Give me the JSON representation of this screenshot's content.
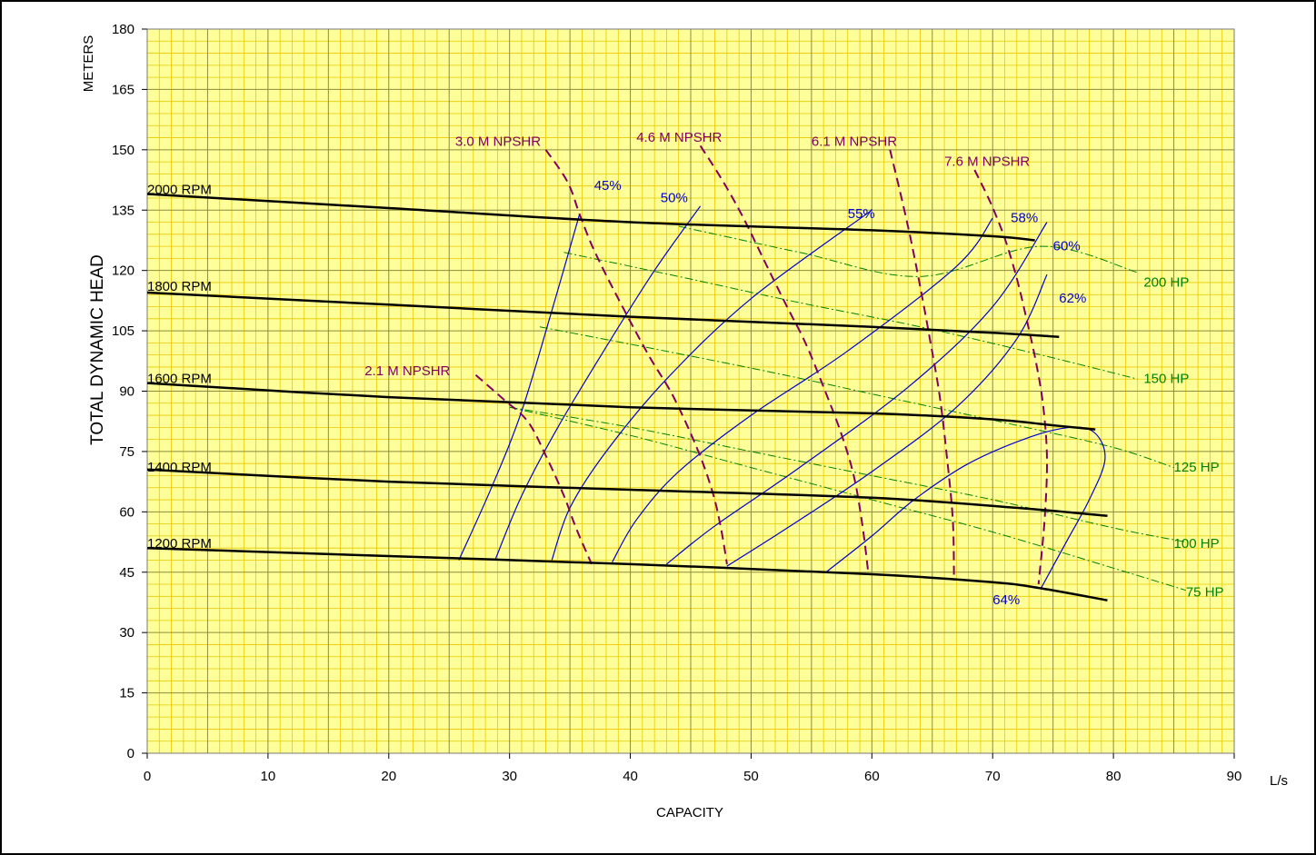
{
  "chart_data": {
    "type": "line",
    "title": "",
    "xlabel": "CAPACITY",
    "x_unit": "L/s",
    "ylabel": "TOTAL DYNAMIC HEAD",
    "y_unit": "METERS",
    "xlim": [
      0,
      90
    ],
    "ylim": [
      0,
      180
    ],
    "x_ticks": [
      0,
      10,
      20,
      30,
      40,
      50,
      60,
      70,
      80,
      90
    ],
    "y_ticks": [
      0,
      15,
      30,
      45,
      60,
      75,
      90,
      105,
      120,
      135,
      150,
      165,
      180
    ],
    "grid": true,
    "colors": {
      "background": "#ffff99",
      "grid_minor": "#e8c800",
      "grid_major": "#8c8c3c",
      "speed_curves": "#000000",
      "efficiency_curves": "#0000cc",
      "npshr_curves": "#800060",
      "horsepower_curves": "#008000"
    },
    "speed_curves": [
      {
        "name": "2000 RPM",
        "label_at": [
          0,
          139
        ],
        "x": [
          0,
          20,
          40,
          60,
          70,
          73.5
        ],
        "y": [
          139,
          135.5,
          132,
          130,
          128.5,
          127.5
        ]
      },
      {
        "name": "1800 RPM",
        "label_at": [
          0,
          115
        ],
        "x": [
          0,
          20,
          40,
          60,
          70,
          75.5
        ],
        "y": [
          114.5,
          111.5,
          108.5,
          106,
          104.5,
          103.5
        ]
      },
      {
        "name": "1600 RPM",
        "label_at": [
          0,
          92
        ],
        "x": [
          0,
          20,
          40,
          60,
          70,
          75,
          78.5
        ],
        "y": [
          92,
          88.5,
          86,
          84.5,
          83,
          81.5,
          80.5
        ]
      },
      {
        "name": "1400 RPM",
        "label_at": [
          0,
          70
        ],
        "x": [
          0,
          20,
          40,
          60,
          72,
          79.5
        ],
        "y": [
          70.5,
          67.5,
          65.5,
          63.5,
          61,
          59
        ]
      },
      {
        "name": "1200 RPM",
        "label_at": [
          0,
          51
        ],
        "x": [
          0,
          20,
          40,
          60,
          70,
          74,
          79.5
        ],
        "y": [
          51,
          49,
          47,
          44.5,
          42.5,
          41,
          38
        ]
      }
    ],
    "efficiency_curves": [
      {
        "name": "45%",
        "label_at": [
          37,
          140
        ],
        "x": [
          25.8,
          28.5,
          31,
          33.5,
          35.8
        ],
        "y": [
          48,
          66,
          85,
          110,
          134
        ]
      },
      {
        "name": "50%",
        "label_at": [
          42.5,
          137
        ],
        "x": [
          28.8,
          31,
          34,
          38,
          42,
          45.8
        ],
        "y": [
          48,
          64,
          81,
          101,
          120,
          136
        ]
      },
      {
        "name": "55%",
        "label_at": [
          58,
          133
        ],
        "x": [
          33.5,
          35,
          38,
          43,
          50,
          60
        ],
        "y": [
          48,
          61,
          75,
          93,
          113,
          135
        ]
      },
      {
        "name": "58%",
        "label_at": [
          71.5,
          132
        ],
        "x": [
          38.5,
          40.5,
          44,
          50,
          58,
          67,
          70
        ],
        "y": [
          47.5,
          58,
          70,
          84,
          100,
          121,
          133
        ]
      },
      {
        "name": "60%",
        "label_at": [
          75,
          125
        ],
        "x": [
          43,
          47,
          54,
          63,
          70,
          74.5
        ],
        "y": [
          47,
          56.5,
          71,
          91,
          111,
          132
        ]
      },
      {
        "name": "62%",
        "label_at": [
          75.5,
          112
        ],
        "x": [
          48,
          53,
          60,
          67,
          72,
          74.5
        ],
        "y": [
          46.5,
          56,
          70,
          86,
          103,
          119
        ]
      },
      {
        "name": "64%",
        "label_at": [
          70,
          37
        ],
        "x": [
          56.2,
          60,
          63.5,
          68,
          73,
          76.5,
          78.5,
          79.3,
          78,
          76,
          74
        ],
        "y": [
          45,
          54,
          63,
          72,
          78.5,
          81,
          79.5,
          73,
          63,
          52,
          41
        ]
      }
    ],
    "npshr_curves": [
      {
        "name": "2.1 M NPSHR",
        "label_at": [
          18,
          94
        ],
        "x": [
          27.2,
          29.5,
          31.5,
          33,
          34.5,
          35.5,
          36.8
        ],
        "y": [
          94,
          88,
          82.5,
          74,
          64,
          56,
          47
        ]
      },
      {
        "name": "3.0 M NPSHR",
        "label_at": [
          25.5,
          151
        ],
        "x": [
          33,
          34.8,
          35.8,
          37,
          39,
          41.5,
          43.5,
          45.5,
          46.8,
          47.5,
          48
        ],
        "y": [
          150,
          142,
          134,
          125,
          113,
          99,
          89,
          76,
          65,
          56,
          47
        ]
      },
      {
        "name": "4.6 M NPSHR",
        "label_at": [
          40.5,
          152
        ],
        "x": [
          45.8,
          47.5,
          49.2,
          51,
          52.8,
          54.5,
          56,
          57.4,
          58.5,
          59.2,
          59.7
        ],
        "y": [
          151,
          143,
          134,
          123,
          112,
          102,
          91,
          80,
          69,
          57,
          45
        ]
      },
      {
        "name": "6.1 M NPSHR",
        "label_at": [
          55,
          151
        ],
        "x": [
          61.5,
          62.3,
          63.2,
          64,
          64.8,
          65.6,
          66.2,
          66.7,
          66.8
        ],
        "y": [
          150,
          140,
          128,
          116,
          103,
          89,
          74,
          58,
          43
        ]
      },
      {
        "name": "7.6 M NPSHR",
        "label_at": [
          66,
          146
        ],
        "x": [
          68.5,
          69.8,
          71,
          72,
          72.8,
          73.6,
          74.2,
          74.5,
          74.3,
          73.8
        ],
        "y": [
          145,
          137,
          128,
          118,
          108,
          97,
          86,
          73,
          58,
          42
        ]
      }
    ],
    "horsepower_curves": [
      {
        "name": "200 HP",
        "label_at": [
          82.5,
          116
        ],
        "x": [
          44,
          54,
          64,
          74,
          82
        ],
        "y": [
          131,
          124.5,
          118.5,
          126,
          119.5
        ]
      },
      {
        "name": "150 HP",
        "label_at": [
          82.5,
          92
        ],
        "x": [
          34.5,
          44,
          54,
          64,
          74,
          82
        ],
        "y": [
          124.5,
          118.5,
          112,
          106,
          99,
          93
        ]
      },
      {
        "name": "125 HP",
        "label_at": [
          85,
          70
        ],
        "x": [
          32.5,
          42,
          52,
          62,
          72,
          80,
          85
        ],
        "y": [
          106,
          100.5,
          94.5,
          88,
          81.5,
          76,
          71
        ]
      },
      {
        "name": "100 HP",
        "label_at": [
          85,
          51
        ],
        "x": [
          30,
          40,
          50,
          60,
          70,
          80,
          86
        ],
        "y": [
          86,
          81,
          75,
          69,
          63,
          56,
          52.5
        ]
      },
      {
        "name": "75 HP",
        "label_at": [
          86,
          39
        ],
        "x": [
          30,
          40,
          50,
          60,
          70,
          80,
          86
        ],
        "y": [
          86,
          79,
          71,
          63,
          55,
          46,
          40.5
        ]
      }
    ]
  }
}
